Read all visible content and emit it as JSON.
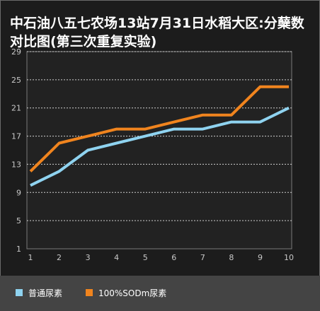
{
  "chart_data": {
    "type": "line",
    "title": "中石油八五七农场13站7月31日水稻大区:分蘖数对比图(第三次重复实验)",
    "xlabel": "",
    "ylabel": "",
    "x": [
      1,
      2,
      3,
      4,
      5,
      6,
      7,
      8,
      9,
      10
    ],
    "x_tick_labels": [
      "1",
      "2",
      "3",
      "4",
      "5",
      "6",
      "7",
      "8",
      "9",
      "10"
    ],
    "ylim": [
      1,
      29
    ],
    "y_ticks": [
      1,
      5,
      9,
      13,
      17,
      21,
      25,
      29
    ],
    "y_tick_labels": [
      "1",
      "5",
      "9",
      "13",
      "17",
      "21",
      "25",
      "29"
    ],
    "grid": "horizontal dashed",
    "legend_position": "bottom",
    "series": [
      {
        "name": "普通尿素",
        "color": "#8fd3f0",
        "values": [
          10,
          12,
          15,
          16,
          17,
          18,
          18,
          19,
          19,
          21
        ]
      },
      {
        "name": "100%SODm尿素",
        "color": "#f0841e",
        "values": [
          12,
          16,
          17,
          18,
          18,
          19,
          20,
          20,
          24,
          24
        ]
      }
    ]
  }
}
